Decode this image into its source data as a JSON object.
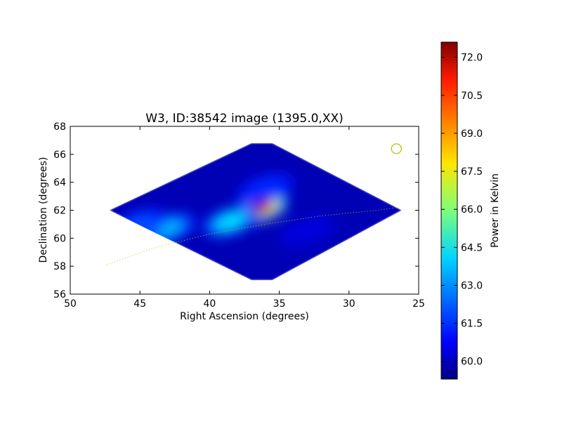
{
  "chart_data": {
    "type": "heatmap",
    "title": "W3, ID:38542 image (1395.0,XX)",
    "xlabel": "Right Ascension (degrees)",
    "ylabel": "Declination (degrees)",
    "xlim": [
      50,
      25
    ],
    "ylim": [
      56,
      68
    ],
    "xticks": [
      "50",
      "45",
      "40",
      "35",
      "30",
      "25"
    ],
    "yticks": [
      "56",
      "58",
      "60",
      "62",
      "64",
      "66",
      "68"
    ],
    "footprint_vertices": [
      [
        47.2,
        62.0
      ],
      [
        37.0,
        66.8
      ],
      [
        35.5,
        66.8
      ],
      [
        26.2,
        62.0
      ],
      [
        35.5,
        57.0
      ],
      [
        37.0,
        57.0
      ]
    ],
    "sources": [
      {
        "ra": 36.4,
        "dec": 62.1,
        "power": 72.5
      },
      {
        "ra": 38.5,
        "dec": 61.2,
        "power": 64.0
      },
      {
        "ra": 43.0,
        "dec": 60.7,
        "power": 63.5
      },
      {
        "ra": 45.0,
        "dec": 61.0,
        "power": 62.0
      },
      {
        "ra": 36.0,
        "dec": 63.5,
        "power": 61.5
      },
      {
        "ra": 33.0,
        "dec": 60.5,
        "power": 60.5
      }
    ],
    "background_power": 60.0,
    "marker": {
      "ra": 26.6,
      "dec": 66.4,
      "shape": "circle",
      "color": "#bfbf00"
    },
    "track": {
      "ra": [
        47.4,
        44,
        40,
        36,
        32,
        28,
        26.6
      ],
      "dec": [
        58.1,
        59.3,
        60.3,
        61.0,
        61.6,
        62.0,
        62.2
      ],
      "style": "dotted",
      "color": "#bfbf00"
    },
    "colorbar": {
      "label": "Power in Kelvin",
      "range": [
        59.3,
        72.6
      ],
      "ticks": [
        "60.0",
        "61.5",
        "63.0",
        "64.5",
        "66.0",
        "67.5",
        "69.0",
        "70.5",
        "72.0"
      ],
      "colormap": "jet"
    }
  }
}
